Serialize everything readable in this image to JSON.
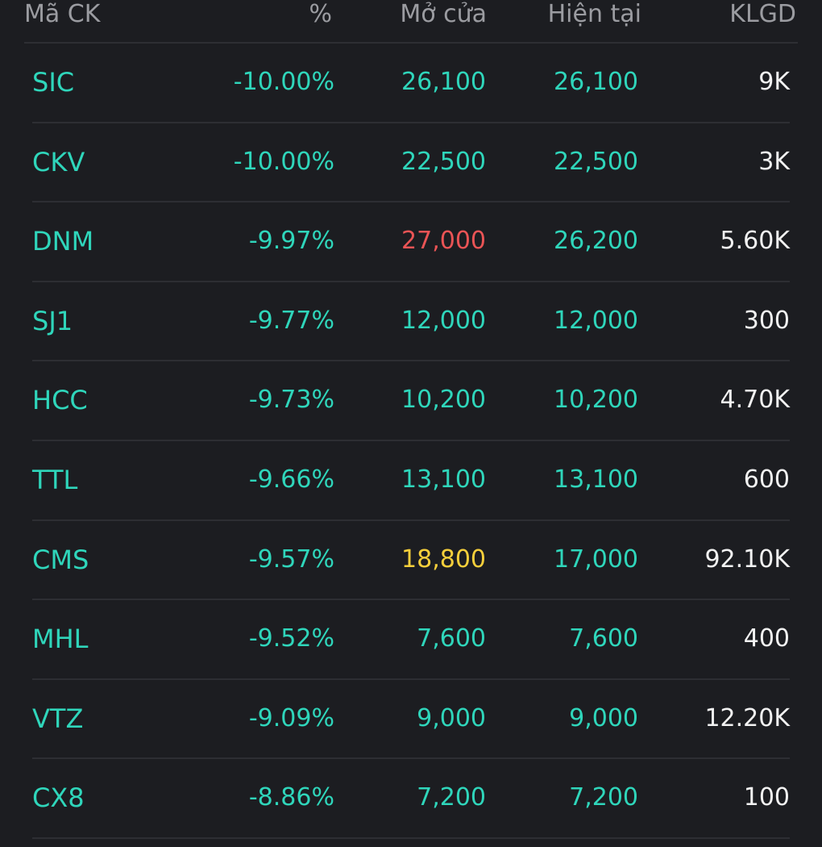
{
  "colors": {
    "background": "#1c1d21",
    "divider": "#2d2e33",
    "header_text": "#9b9ca1",
    "teal": "#2fd6bb",
    "red": "#ea5455",
    "yellow": "#f6cf3b",
    "white": "#f2f2f2"
  },
  "header": {
    "symbol": "Mã CK",
    "percent": "%",
    "open": "Mở cửa",
    "current": "Hiện tại",
    "volume": "KLGD"
  },
  "rows": [
    {
      "symbol": "SIC",
      "percent": "-10.00%",
      "open": "26,100",
      "open_color": "#2fd6bb",
      "current": "26,100",
      "current_color": "#2fd6bb",
      "volume": "9K"
    },
    {
      "symbol": "CKV",
      "percent": "-10.00%",
      "open": "22,500",
      "open_color": "#2fd6bb",
      "current": "22,500",
      "current_color": "#2fd6bb",
      "volume": "3K"
    },
    {
      "symbol": "DNM",
      "percent": "-9.97%",
      "open": "27,000",
      "open_color": "#ea5455",
      "current": "26,200",
      "current_color": "#2fd6bb",
      "volume": "5.60K"
    },
    {
      "symbol": "SJ1",
      "percent": "-9.77%",
      "open": "12,000",
      "open_color": "#2fd6bb",
      "current": "12,000",
      "current_color": "#2fd6bb",
      "volume": "300"
    },
    {
      "symbol": "HCC",
      "percent": "-9.73%",
      "open": "10,200",
      "open_color": "#2fd6bb",
      "current": "10,200",
      "current_color": "#2fd6bb",
      "volume": "4.70K"
    },
    {
      "symbol": "TTL",
      "percent": "-9.66%",
      "open": "13,100",
      "open_color": "#2fd6bb",
      "current": "13,100",
      "current_color": "#2fd6bb",
      "volume": "600"
    },
    {
      "symbol": "CMS",
      "percent": "-9.57%",
      "open": "18,800",
      "open_color": "#f6cf3b",
      "current": "17,000",
      "current_color": "#2fd6bb",
      "volume": "92.10K"
    },
    {
      "symbol": "MHL",
      "percent": "-9.52%",
      "open": "7,600",
      "open_color": "#2fd6bb",
      "current": "7,600",
      "current_color": "#2fd6bb",
      "volume": "400"
    },
    {
      "symbol": "VTZ",
      "percent": "-9.09%",
      "open": "9,000",
      "open_color": "#2fd6bb",
      "current": "9,000",
      "current_color": "#2fd6bb",
      "volume": "12.20K"
    },
    {
      "symbol": "CX8",
      "percent": "-8.86%",
      "open": "7,200",
      "open_color": "#2fd6bb",
      "current": "7,200",
      "current_color": "#2fd6bb",
      "volume": "100"
    }
  ]
}
